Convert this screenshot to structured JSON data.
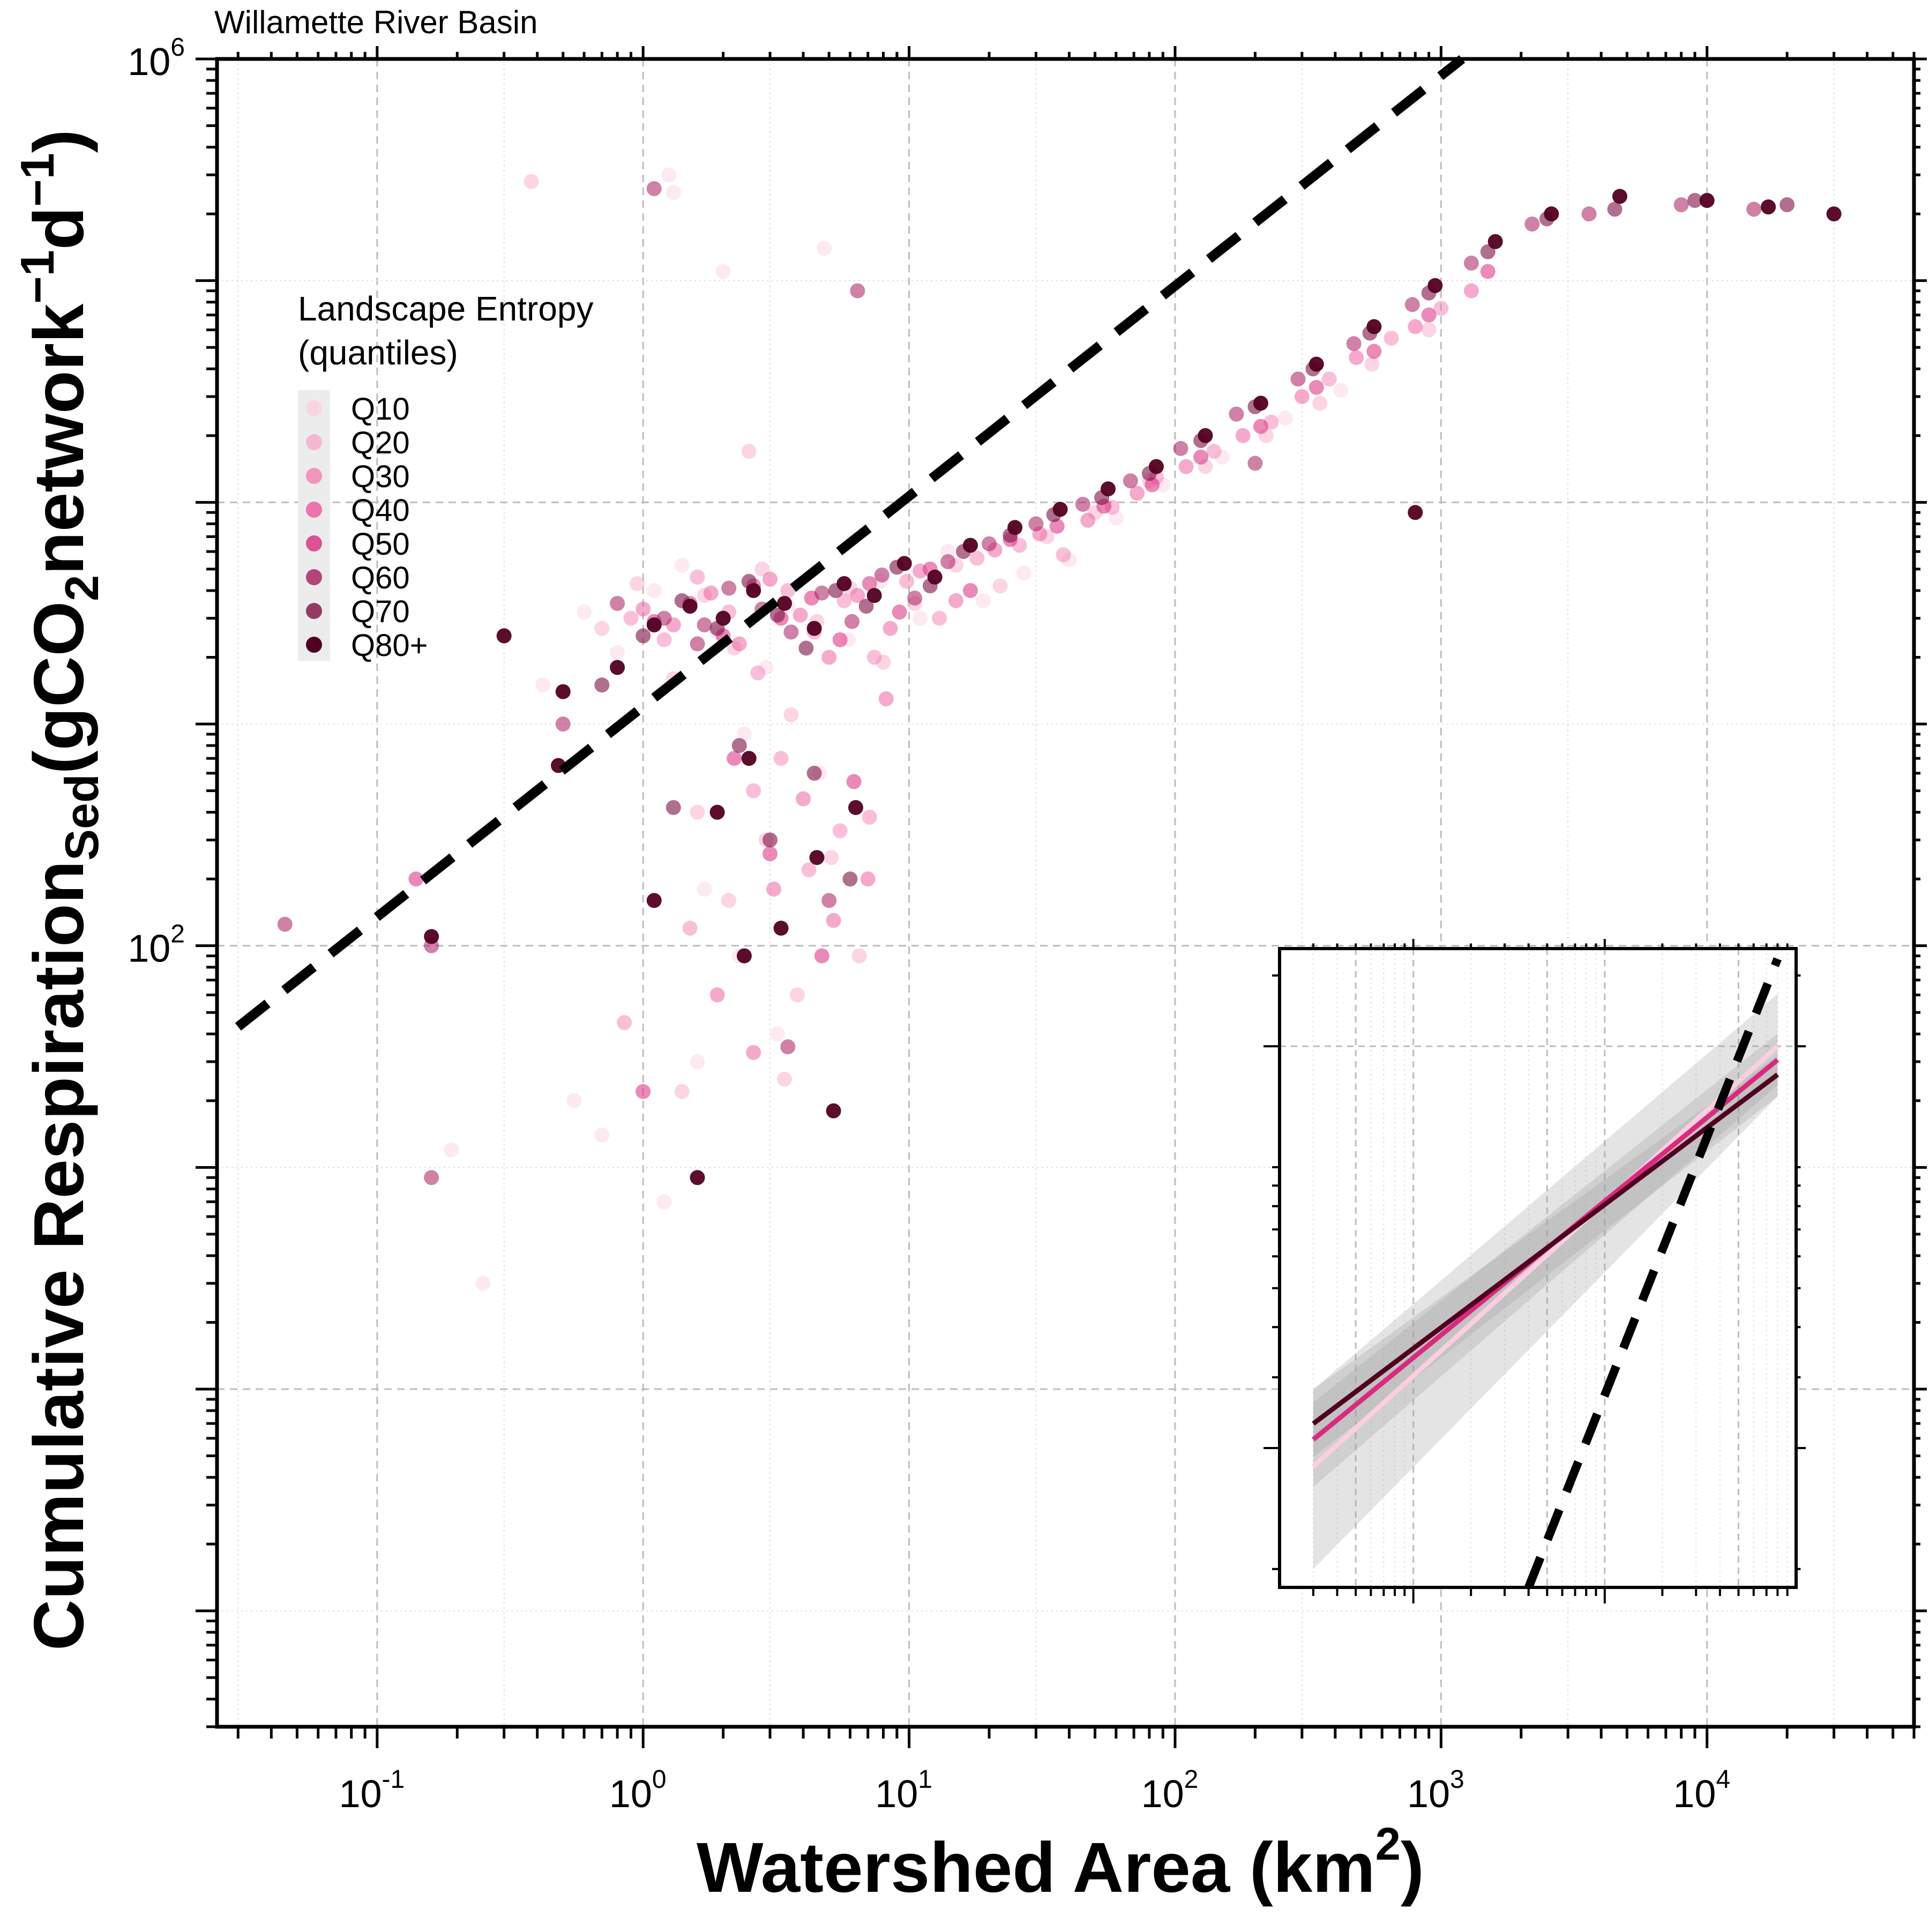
{
  "chart_data": {
    "type": "scatter",
    "title": "Willamette River Basin",
    "xlabel": {
      "main": "Watershed Area (km",
      "sup": "2",
      "tail": ")"
    },
    "ylabel": {
      "part1": "Cumulative Respiration",
      "sub1": "Sed",
      "part2": "(gCO",
      "sub2": "2",
      "part3": "network",
      "sup1": "−1",
      "part4": "d",
      "sup2": "−1",
      "part5": ")"
    },
    "x_scale": "log",
    "y_scale": "log",
    "xlim": [
      0.025,
      60000
    ],
    "ylim": [
      0.03,
      1000000
    ],
    "x_ticks": [
      {
        "value": 0.1,
        "base": "10",
        "exp": "-1"
      },
      {
        "value": 1,
        "base": "10",
        "exp": "0"
      },
      {
        "value": 10,
        "base": "10",
        "exp": "1"
      },
      {
        "value": 100,
        "base": "10",
        "exp": "2"
      },
      {
        "value": 1000,
        "base": "10",
        "exp": "3"
      },
      {
        "value": 10000,
        "base": "10",
        "exp": "4"
      }
    ],
    "y_ticks": [
      {
        "value": 100,
        "base": "10",
        "exp": "2"
      },
      {
        "value": 1000000,
        "base": "10",
        "exp": "6"
      }
    ],
    "grid": true,
    "legend": {
      "title_line1": "Landscape Entropy",
      "title_line2": "(quantiles)",
      "placement": "upper-left",
      "entries": [
        "Q10",
        "Q20",
        "Q30",
        "Q40",
        "Q50",
        "Q60",
        "Q70",
        "Q80+"
      ]
    },
    "series_colors": [
      "#fbcfe0",
      "#f9a9c9",
      "#f47fb2",
      "#ec559b",
      "#d92a7f",
      "#a81a5f",
      "#7d0f44",
      "#520020"
    ],
    "series": [
      {
        "name": "Q10",
        "points": [
          [
            0.6,
            3200
          ],
          [
            0.8,
            2100
          ],
          [
            1.1,
            4000
          ],
          [
            1.4,
            5200
          ],
          [
            1.9,
            2600
          ],
          [
            2.4,
            900
          ],
          [
            2.9,
            1800
          ],
          [
            3.5,
            3400
          ],
          [
            4.6,
            600
          ],
          [
            5.9,
            2400
          ],
          [
            7.8,
            4400
          ],
          [
            11,
            3000
          ],
          [
            14,
            6000
          ],
          [
            19,
            3600
          ],
          [
            27,
            4800
          ],
          [
            40,
            5500
          ],
          [
            60,
            8500
          ],
          [
            90,
            12000
          ],
          [
            150,
            16000
          ],
          [
            260,
            24000
          ],
          [
            420,
            32000
          ],
          [
            1.3,
            250000
          ],
          [
            1.7,
            180
          ],
          [
            2.3,
            90
          ],
          [
            3.2,
            40
          ],
          [
            1.2,
            7
          ],
          [
            0.25,
            3
          ],
          [
            0.55,
            20
          ],
          [
            0.19,
            12
          ],
          [
            4.8,
            140000
          ],
          [
            0.42,
            1500
          ],
          [
            1.25,
            300000
          ],
          [
            2.0,
            110000
          ],
          [
            0.7,
            14
          ],
          [
            1.6,
            30
          ]
        ]
      },
      {
        "name": "Q20",
        "points": [
          [
            0.7,
            2700
          ],
          [
            0.95,
            4300
          ],
          [
            1.3,
            1600
          ],
          [
            1.7,
            3800
          ],
          [
            2.2,
            2200
          ],
          [
            2.8,
            5000
          ],
          [
            3.6,
            1100
          ],
          [
            4.5,
            2900
          ],
          [
            6.0,
            4100
          ],
          [
            8.0,
            1900
          ],
          [
            10.5,
            3500
          ],
          [
            15,
            5200
          ],
          [
            22,
            4200
          ],
          [
            33,
            7000
          ],
          [
            50,
            9000
          ],
          [
            80,
            12500
          ],
          [
            130,
            14500
          ],
          [
            220,
            20000
          ],
          [
            350,
            28000
          ],
          [
            550,
            42000
          ],
          [
            900,
            60000
          ],
          [
            1.6,
            400
          ],
          [
            2.1,
            160
          ],
          [
            2.9,
            300
          ],
          [
            3.8,
            60
          ],
          [
            5.1,
            250
          ],
          [
            6.5,
            90
          ],
          [
            1.4,
            22
          ],
          [
            0.38,
            280000
          ],
          [
            2.5,
            17000
          ],
          [
            3.4,
            25
          ]
        ]
      },
      {
        "name": "Q30",
        "points": [
          [
            0.9,
            3000
          ],
          [
            1.2,
            2400
          ],
          [
            1.6,
            4600
          ],
          [
            2.1,
            3200
          ],
          [
            2.7,
            1700
          ],
          [
            3.5,
            4000
          ],
          [
            4.4,
            2600
          ],
          [
            5.7,
            3600
          ],
          [
            7.4,
            2000
          ],
          [
            9.8,
            4400
          ],
          [
            13,
            3000
          ],
          [
            18,
            5600
          ],
          [
            26,
            6400
          ],
          [
            38,
            5800
          ],
          [
            58,
            9500
          ],
          [
            85,
            13000
          ],
          [
            140,
            17000
          ],
          [
            230,
            23000
          ],
          [
            380,
            36000
          ],
          [
            650,
            55000
          ],
          [
            1000,
            75000
          ],
          [
            2.6,
            500
          ],
          [
            3.3,
            700
          ],
          [
            4.2,
            220
          ],
          [
            5.5,
            330
          ],
          [
            7.1,
            380
          ],
          [
            0.85,
            45
          ],
          [
            1.5,
            120
          ]
        ]
      },
      {
        "name": "Q40",
        "points": [
          [
            1.0,
            3300
          ],
          [
            1.3,
            2800
          ],
          [
            1.8,
            3900
          ],
          [
            2.3,
            2300
          ],
          [
            3.0,
            4500
          ],
          [
            3.9,
            3100
          ],
          [
            5.0,
            2000
          ],
          [
            6.4,
            3800
          ],
          [
            8.5,
            2700
          ],
          [
            11,
            4900
          ],
          [
            15,
            3600
          ],
          [
            21,
            6100
          ],
          [
            31,
            7200
          ],
          [
            47,
            8300
          ],
          [
            72,
            11000
          ],
          [
            110,
            14500
          ],
          [
            180,
            20000
          ],
          [
            300,
            30000
          ],
          [
            480,
            45000
          ],
          [
            800,
            62000
          ],
          [
            1300,
            90000
          ],
          [
            3.1,
            180
          ],
          [
            4.0,
            460
          ],
          [
            5.2,
            130
          ],
          [
            7.0,
            200
          ],
          [
            1.9,
            60
          ],
          [
            2.6,
            33
          ],
          [
            8.2,
            1300
          ]
        ]
      },
      {
        "name": "Q50",
        "points": [
          [
            1.1,
            2900
          ],
          [
            1.5,
            3500
          ],
          [
            2.0,
            2500
          ],
          [
            2.6,
            4200
          ],
          [
            3.3,
            3000
          ],
          [
            4.3,
            3700
          ],
          [
            5.5,
            2400
          ],
          [
            7.1,
            4300
          ],
          [
            9.2,
            3200
          ],
          [
            12,
            5000
          ],
          [
            17,
            4000
          ],
          [
            24,
            6800
          ],
          [
            36,
            7800
          ],
          [
            54,
            9600
          ],
          [
            82,
            12000
          ],
          [
            125,
            16000
          ],
          [
            210,
            22000
          ],
          [
            340,
            33000
          ],
          [
            560,
            48000
          ],
          [
            900,
            70000
          ],
          [
            1500,
            110000
          ],
          [
            2.2,
            700
          ],
          [
            3.0,
            260
          ],
          [
            4.7,
            90
          ],
          [
            6.2,
            550
          ],
          [
            1.0,
            22
          ],
          [
            0.14,
            200
          ]
        ]
      },
      {
        "name": "Q60",
        "points": [
          [
            0.5,
            1000
          ],
          [
            0.8,
            3500
          ],
          [
            1.2,
            3000
          ],
          [
            1.6,
            2300
          ],
          [
            2.1,
            4100
          ],
          [
            2.8,
            3300
          ],
          [
            3.6,
            2600
          ],
          [
            4.7,
            3900
          ],
          [
            6.1,
            2900
          ],
          [
            7.9,
            4700
          ],
          [
            10.5,
            3700
          ],
          [
            14,
            5400
          ],
          [
            20,
            6500
          ],
          [
            30,
            8000
          ],
          [
            45,
            9800
          ],
          [
            68,
            12500
          ],
          [
            105,
            17500
          ],
          [
            170,
            25000
          ],
          [
            290,
            36000
          ],
          [
            470,
            52000
          ],
          [
            780,
            78000
          ],
          [
            1300,
            120000
          ],
          [
            2200,
            180000
          ],
          [
            3600,
            200000
          ],
          [
            8000,
            220000
          ],
          [
            15000,
            210000
          ],
          [
            0.045,
            125
          ],
          [
            0.16,
            100
          ],
          [
            0.16,
            9
          ],
          [
            3.5,
            35
          ],
          [
            5.0,
            160
          ],
          [
            6.4,
            90000
          ],
          [
            1.1,
            260000
          ],
          [
            1.7,
            2800
          ],
          [
            200,
            15000
          ]
        ]
      },
      {
        "name": "Q70",
        "points": [
          [
            0.7,
            1500
          ],
          [
            1.0,
            2500
          ],
          [
            1.4,
            3600
          ],
          [
            1.9,
            2700
          ],
          [
            2.5,
            4400
          ],
          [
            3.2,
            3100
          ],
          [
            4.1,
            2200
          ],
          [
            5.3,
            4000
          ],
          [
            6.9,
            3400
          ],
          [
            9.0,
            5100
          ],
          [
            12,
            4200
          ],
          [
            16,
            6000
          ],
          [
            24,
            7100
          ],
          [
            35,
            8800
          ],
          [
            53,
            10500
          ],
          [
            80,
            13500
          ],
          [
            125,
            19000
          ],
          [
            200,
            27000
          ],
          [
            330,
            40000
          ],
          [
            540,
            58000
          ],
          [
            900,
            88000
          ],
          [
            1500,
            135000
          ],
          [
            2500,
            190000
          ],
          [
            4500,
            210000
          ],
          [
            9000,
            230000
          ],
          [
            20000,
            220000
          ],
          [
            2.3,
            800
          ],
          [
            3.0,
            300
          ],
          [
            4.4,
            600
          ],
          [
            6.0,
            200
          ],
          [
            1.3,
            420
          ]
        ]
      },
      {
        "name": "Q80+",
        "points": [
          [
            0.3,
            2500
          ],
          [
            0.5,
            1400
          ],
          [
            0.8,
            1800
          ],
          [
            1.1,
            2800
          ],
          [
            1.5,
            3400
          ],
          [
            2.0,
            3000
          ],
          [
            2.6,
            4000
          ],
          [
            3.4,
            3500
          ],
          [
            4.4,
            2700
          ],
          [
            5.7,
            4300
          ],
          [
            7.4,
            3800
          ],
          [
            9.6,
            5300
          ],
          [
            12.5,
            4600
          ],
          [
            17,
            6400
          ],
          [
            25,
            7700
          ],
          [
            37,
            9300
          ],
          [
            56,
            11500
          ],
          [
            85,
            14500
          ],
          [
            130,
            20000
          ],
          [
            210,
            28000
          ],
          [
            340,
            42000
          ],
          [
            560,
            62000
          ],
          [
            950,
            95000
          ],
          [
            1600,
            150000
          ],
          [
            2600,
            200000
          ],
          [
            4700,
            240000
          ],
          [
            10000,
            230000
          ],
          [
            17000,
            215000
          ],
          [
            30000,
            200000
          ],
          [
            0.16,
            110
          ],
          [
            1.9,
            400
          ],
          [
            2.5,
            700
          ],
          [
            3.3,
            120
          ],
          [
            4.5,
            250
          ],
          [
            5.2,
            18
          ],
          [
            6.3,
            420
          ],
          [
            1.6,
            9
          ],
          [
            2.4,
            90
          ],
          [
            1.1,
            160
          ],
          [
            800,
            9000
          ],
          [
            0.48,
            650
          ]
        ]
      }
    ],
    "reference_line": {
      "style": "dashed",
      "color": "#000000",
      "x": [
        0.03,
        1200
      ],
      "y": [
        43.1,
        1000000
      ]
    },
    "inset": {
      "type": "line",
      "x_scale": "log",
      "y_scale": "log",
      "xlim": [
        200,
        100000
      ],
      "ylim": [
        9000,
        350000
      ],
      "series": [
        {
          "x": [
            300,
            80000
          ],
          "y": [
            18000,
            200000
          ],
          "color": "#fbcfe0",
          "band_low": [
            10000,
            150000
          ],
          "band_high": [
            28000,
            270000
          ]
        },
        {
          "x": [
            300,
            80000
          ],
          "y": [
            21000,
            185000
          ],
          "color": "#d92a7f",
          "band_low": [
            16000,
            160000
          ],
          "band_high": [
            26000,
            215000
          ]
        },
        {
          "x": [
            300,
            80000
          ],
          "y": [
            23000,
            170000
          ],
          "color": "#520020",
          "band_low": [
            19000,
            150000
          ],
          "band_high": [
            28000,
            190000
          ]
        }
      ],
      "reference_line": {
        "x": [
          4000,
          80000
        ],
        "y": [
          9000,
          330000
        ],
        "style": "dashed",
        "color": "#000000"
      }
    }
  }
}
